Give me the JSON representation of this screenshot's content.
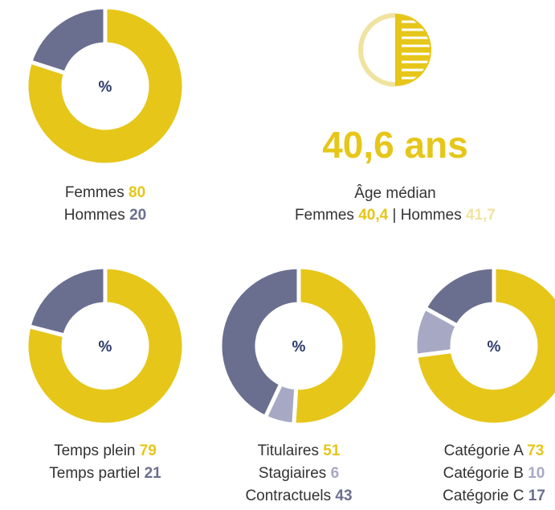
{
  "chart_data": [
    {
      "type": "pie",
      "center_label": "%",
      "categories": [
        "Femmes",
        "Hommes"
      ],
      "values": [
        80,
        20
      ],
      "colors": [
        "#e6c619",
        "#6b6f8f"
      ]
    },
    {
      "type": "pie",
      "center_label": "%",
      "categories": [
        "Temps plein",
        "Temps partiel"
      ],
      "values": [
        79,
        21
      ],
      "colors": [
        "#e6c619",
        "#6b6f8f"
      ]
    },
    {
      "type": "pie",
      "center_label": "%",
      "categories": [
        "Titulaires",
        "Stagiaires",
        "Contractuels"
      ],
      "values": [
        51,
        6,
        43
      ],
      "colors": [
        "#e6c619",
        "#a7a9c4",
        "#6b6f8f"
      ]
    },
    {
      "type": "pie",
      "center_label": "%",
      "categories": [
        "Catégorie A",
        "Catégorie B",
        "Catégorie C"
      ],
      "values": [
        73,
        10,
        17
      ],
      "colors": [
        "#e6c619",
        "#a7a9c4",
        "#6b6f8f"
      ]
    }
  ],
  "median_age": {
    "value": "40,6 ans",
    "label": "Âge médian",
    "women_label": "Femmes",
    "women": "40,4",
    "separator": "|",
    "men_label": "Hommes",
    "men": "41,7"
  }
}
